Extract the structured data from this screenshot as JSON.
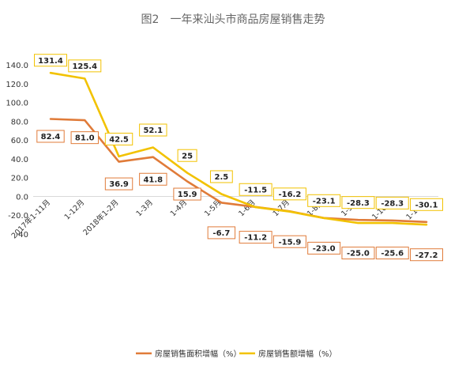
{
  "chart_data": {
    "type": "line",
    "title": "图2　一年来汕头市商品房屋销售走势",
    "categories": [
      "2017年1-11月",
      "1-12月",
      "2018年1-2月",
      "1-3月",
      "1-4月",
      "1-5月",
      "1-6月",
      "1-7月",
      "1-8月",
      "1-9月",
      "1-10月",
      "1-11月"
    ],
    "ylim": [
      -40,
      140
    ],
    "yticks": [
      "140.0",
      "120.0",
      "100.0",
      "80.0",
      "60.0",
      "40.0",
      "20.0",
      "0.0",
      "-20.0",
      "-40"
    ],
    "ytick_values": [
      140,
      120,
      100,
      80,
      60,
      40,
      20,
      0,
      -20,
      -40
    ],
    "legend_position": "bottom",
    "series": [
      {
        "name": "房屋销售面积增幅（%）",
        "color": "#e07b39",
        "values": [
          82.4,
          81.0,
          36.9,
          41.8,
          15.9,
          -6.7,
          -11.2,
          -15.9,
          -23.0,
          -25.0,
          -25.6,
          -27.2
        ],
        "labels": [
          "82.4",
          "81.0",
          "36.9",
          "41.8",
          "15.9",
          "-6.7",
          "-11.2",
          "-15.9",
          "-23.0",
          "-25.0",
          "-25.6",
          "-27.2"
        ]
      },
      {
        "name": "房屋销售额增幅（%）",
        "color": "#f2c200",
        "values": [
          131.4,
          125.4,
          42.5,
          52.1,
          25,
          2.5,
          -11.5,
          -16.2,
          -23.1,
          -28.3,
          -28.3,
          -30.1
        ],
        "labels": [
          "131.4",
          "125.4",
          "42.5",
          "52.1",
          "25",
          "2.5",
          "-11.5",
          "-16.2",
          "-23.1",
          "-28.3",
          "-28.3",
          "-30.1"
        ]
      }
    ]
  }
}
